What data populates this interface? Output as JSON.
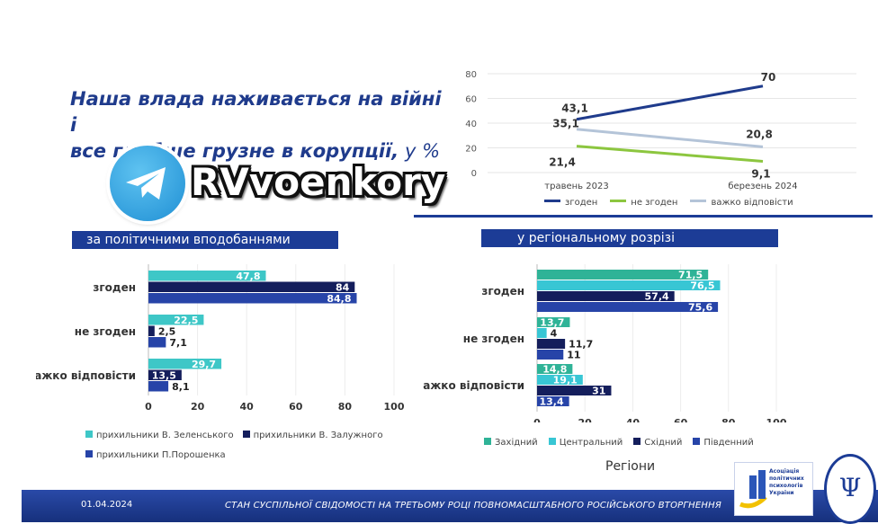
{
  "title": {
    "line1": "Наша влада наживається на війні і",
    "line2": "все глибше грузне в корупції,",
    "unit": " у %"
  },
  "watermark": {
    "text": "RVvoenkory",
    "icon": "telegram-icon"
  },
  "footer": {
    "date": "01.04.2024",
    "text": "СТАН СУСПІЛЬНОЇ СВІДОМОСТІ НА ТРЕТЬОМУ РОЦІ ПОВНОМАСШТАБНОГО РОСІЙСЬКОГО ВТОРГНЕННЯ"
  },
  "logos": {
    "association": [
      "Асоціація",
      "політичних",
      "психологів",
      "України"
    ],
    "seal_icon": "psi-icon"
  },
  "chart_data": [
    {
      "type": "line",
      "x": [
        "травень 2023",
        "березень 2024"
      ],
      "yticks": [
        0,
        20,
        40,
        60,
        80
      ],
      "ylim": [
        0,
        80
      ],
      "series": [
        {
          "name": "згоден",
          "values": [
            43.1,
            70
          ],
          "labels": [
            "43,1",
            "70"
          ],
          "color": "#1f3b8c"
        },
        {
          "name": "не згоден",
          "values": [
            21.4,
            9.1
          ],
          "labels": [
            "21,4",
            "9,1"
          ],
          "color": "#8cc63f"
        },
        {
          "name": "важко відповісти",
          "values": [
            35.1,
            20.8
          ],
          "labels": [
            "35,1",
            "20,8"
          ],
          "color": "#b4c4d8"
        }
      ],
      "legend_position": "bottom"
    },
    {
      "type": "bar",
      "orientation": "horizontal",
      "header": "за політичними вподобаннями",
      "categories": [
        "згоден",
        "не згоден",
        "важко відповісти"
      ],
      "xticks": [
        0,
        20,
        40,
        60,
        80,
        100
      ],
      "xlim": [
        0,
        100
      ],
      "series": [
        {
          "name": "прихильники В. Зеленського",
          "values": [
            47.8,
            22.5,
            29.7
          ],
          "labels": [
            "47,8",
            "22,5",
            "29,7"
          ],
          "color": "#3ec7c7"
        },
        {
          "name": "прихильники В. Залужного",
          "values": [
            84,
            2.5,
            13.5
          ],
          "labels": [
            "84",
            "2,5",
            "13,5"
          ],
          "color": "#141e5c"
        },
        {
          "name": "прихильники П.Порошенка",
          "values": [
            84.8,
            7.1,
            8.1
          ],
          "labels": [
            "84,8",
            "7,1",
            "8,1"
          ],
          "color": "#2744a8"
        }
      ],
      "legend_position": "bottom"
    },
    {
      "type": "bar",
      "orientation": "horizontal",
      "header": "у регіональному розрізі",
      "categories": [
        "згоден",
        "не згоден",
        "важко відповісти"
      ],
      "xticks": [
        0,
        20,
        40,
        60,
        80,
        100
      ],
      "xlim": [
        0,
        100
      ],
      "xlabel": "Регіони",
      "series": [
        {
          "name": "Західний",
          "values": [
            71.5,
            13.7,
            14.8
          ],
          "labels": [
            "71,5",
            "13,7",
            "14,8"
          ],
          "color": "#2fb397"
        },
        {
          "name": "Центральний",
          "values": [
            76.5,
            4,
            19.1
          ],
          "labels": [
            "76,5",
            "4",
            "19,1"
          ],
          "color": "#38c6d4"
        },
        {
          "name": "Східний",
          "values": [
            57.4,
            11.7,
            31
          ],
          "labels": [
            "57,4",
            "11,7",
            "31"
          ],
          "color": "#141e5c"
        },
        {
          "name": "Південний",
          "values": [
            75.6,
            11,
            13.4
          ],
          "labels": [
            "75,6",
            "11",
            "13,4"
          ],
          "color": "#2744a8"
        }
      ],
      "legend_position": "bottom"
    }
  ]
}
